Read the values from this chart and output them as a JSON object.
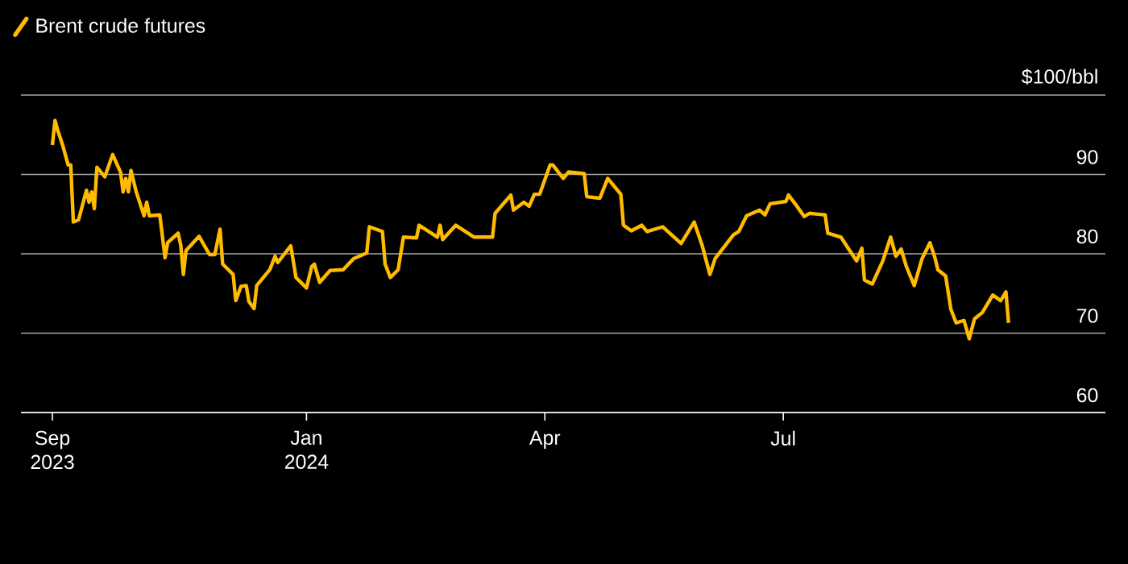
{
  "chart_data": {
    "type": "line",
    "x": [
      "2023-09-26",
      "2023-09-27",
      "2023-09-28",
      "2023-09-30",
      "2023-10-02",
      "2023-10-03",
      "2023-10-04",
      "2023-10-06",
      "2023-10-09",
      "2023-10-10",
      "2023-10-11",
      "2023-10-12",
      "2023-10-13",
      "2023-10-16",
      "2023-10-19",
      "2023-10-22",
      "2023-10-23",
      "2023-10-24",
      "2023-10-25",
      "2023-10-26",
      "2023-10-28",
      "2023-10-31",
      "2023-11-01",
      "2023-11-02",
      "2023-11-06",
      "2023-11-08",
      "2023-11-09",
      "2023-11-13",
      "2023-11-14",
      "2023-11-15",
      "2023-11-16",
      "2023-11-21",
      "2023-11-25",
      "2023-11-27",
      "2023-11-29",
      "2023-11-30",
      "2023-12-04",
      "2023-12-05",
      "2023-12-07",
      "2023-12-09",
      "2023-12-10",
      "2023-12-12",
      "2023-12-13",
      "2023-12-18",
      "2023-12-20",
      "2023-12-21",
      "2023-12-26",
      "2023-12-28",
      "2024-01-01",
      "2024-01-03",
      "2024-01-04",
      "2024-01-06",
      "2024-01-10",
      "2024-01-15",
      "2024-01-19",
      "2024-01-24",
      "2024-01-25",
      "2024-01-30",
      "2024-01-31",
      "2024-02-02",
      "2024-02-05",
      "2024-02-07",
      "2024-02-12",
      "2024-02-13",
      "2024-02-20",
      "2024-02-21",
      "2024-02-22",
      "2024-02-27",
      "2024-03-05",
      "2024-03-12",
      "2024-03-13",
      "2024-03-19",
      "2024-03-20",
      "2024-03-24",
      "2024-03-26",
      "2024-03-28",
      "2024-03-30",
      "2024-04-03",
      "2024-04-04",
      "2024-04-08",
      "2024-04-10",
      "2024-04-16",
      "2024-04-17",
      "2024-04-22",
      "2024-04-25",
      "2024-04-30",
      "2024-05-01",
      "2024-05-04",
      "2024-05-08",
      "2024-05-10",
      "2024-05-16",
      "2024-05-23",
      "2024-05-28",
      "2024-05-31",
      "2024-06-03",
      "2024-06-05",
      "2024-06-12",
      "2024-06-14",
      "2024-06-17",
      "2024-06-22",
      "2024-06-24",
      "2024-06-26",
      "2024-07-02",
      "2024-07-03",
      "2024-07-06",
      "2024-07-09",
      "2024-07-11",
      "2024-07-17",
      "2024-07-18",
      "2024-07-23",
      "2024-07-25",
      "2024-07-29",
      "2024-07-31",
      "2024-08-01",
      "2024-08-04",
      "2024-08-08",
      "2024-08-11",
      "2024-08-13",
      "2024-08-15",
      "2024-08-17",
      "2024-08-20",
      "2024-08-23",
      "2024-08-26",
      "2024-08-28",
      "2024-08-29",
      "2024-09-01",
      "2024-09-03",
      "2024-09-05",
      "2024-09-08",
      "2024-09-10",
      "2024-09-12",
      "2024-09-15",
      "2024-09-19",
      "2024-09-22",
      "2024-09-24",
      "2024-09-25"
    ],
    "series": [
      {
        "name": "Brent crude futures",
        "color": "#ffbb00",
        "values": [
          93.7,
          96.8,
          95.6,
          93.6,
          91.2,
          91.2,
          84.0,
          84.3,
          88.0,
          86.5,
          87.8,
          85.7,
          90.9,
          89.7,
          92.5,
          90.3,
          87.8,
          89.5,
          87.8,
          90.5,
          87.8,
          84.8,
          86.5,
          84.8,
          84.9,
          79.5,
          81.4,
          82.6,
          81.1,
          77.4,
          80.4,
          82.2,
          79.9,
          79.9,
          83.1,
          78.7,
          77.4,
          74.1,
          75.9,
          76.0,
          74.0,
          73.1,
          76.0,
          78.0,
          79.7,
          78.9,
          81.0,
          77.0,
          75.7,
          78.4,
          78.7,
          76.4,
          77.9,
          78.0,
          79.4,
          80.1,
          83.4,
          82.8,
          78.7,
          77.0,
          78.0,
          82.1,
          82.0,
          83.6,
          82.1,
          83.6,
          81.8,
          83.6,
          82.1,
          82.1,
          85.1,
          87.4,
          85.5,
          86.5,
          86.0,
          87.5,
          87.5,
          91.2,
          91.2,
          89.5,
          90.3,
          90.1,
          87.2,
          87.0,
          89.5,
          87.5,
          83.6,
          82.9,
          83.6,
          82.8,
          83.4,
          81.3,
          84.0,
          81.1,
          77.4,
          79.4,
          82.4,
          82.8,
          84.8,
          85.5,
          84.9,
          86.3,
          86.6,
          87.4,
          86.1,
          84.7,
          85.1,
          84.9,
          82.6,
          82.1,
          81.1,
          79.1,
          80.7,
          76.7,
          76.2,
          79.1,
          82.1,
          79.7,
          80.6,
          78.4,
          76.0,
          79.4,
          81.4,
          79.4,
          78.0,
          77.2,
          73.0,
          71.3,
          71.6,
          69.3,
          71.8,
          72.6,
          74.8,
          74.1,
          75.2,
          71.3
        ]
      }
    ],
    "xlim": [
      "2023-09-14",
      "2024-11-01"
    ],
    "xticks": [
      {
        "value": "2023-09-26",
        "label": "Sep 2023"
      },
      {
        "value": "2024-01-01",
        "label": "Jan 2024"
      },
      {
        "value": "2024-04-01",
        "label": "Apr"
      },
      {
        "value": "2024-07-01",
        "label": "Jul"
      }
    ],
    "ylim": [
      60,
      100
    ],
    "yticks": [
      60,
      70,
      80,
      90,
      {
        "value": 100,
        "label": "$100/bbl"
      }
    ],
    "grid": "y",
    "legend": "top left",
    "line_style": "solid",
    "marker": "none"
  }
}
